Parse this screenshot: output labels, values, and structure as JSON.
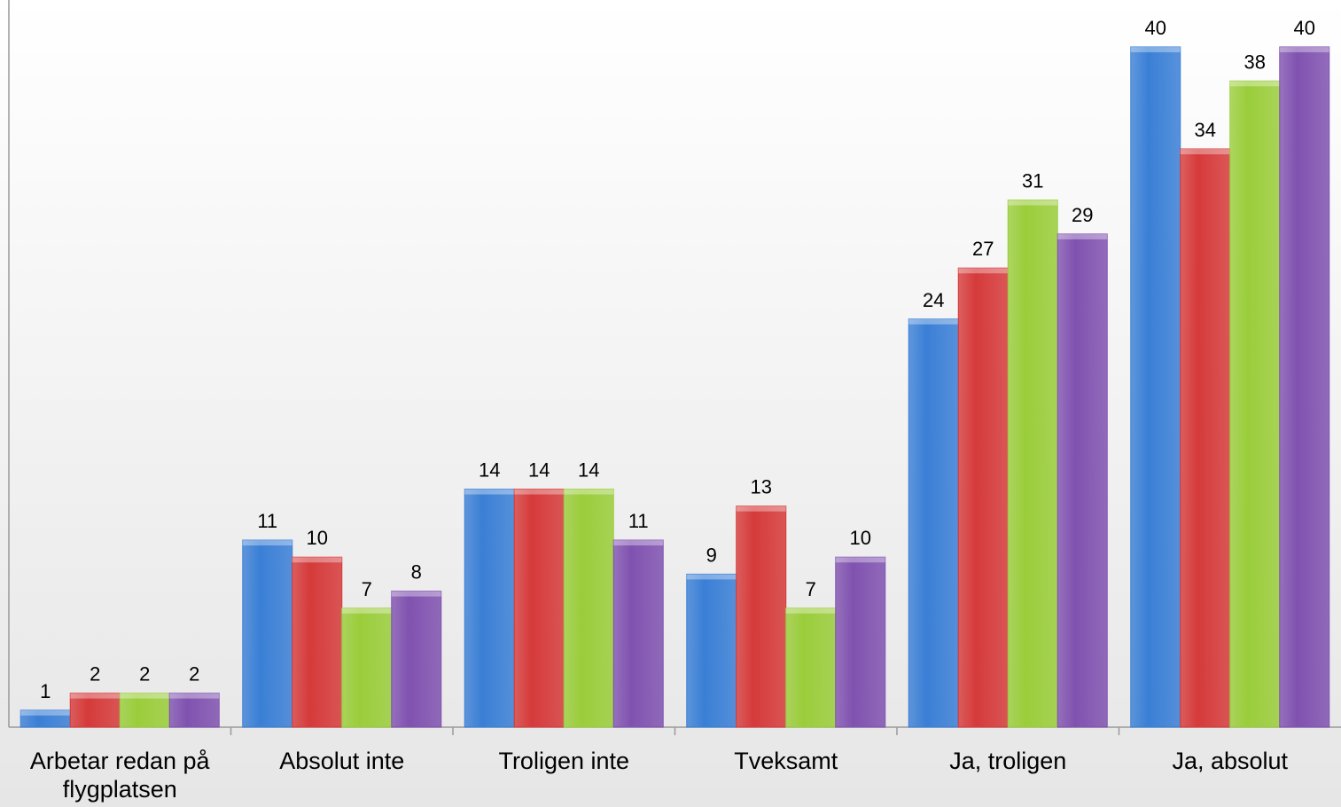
{
  "chart_data": {
    "type": "bar",
    "categories": [
      "Arbetar redan på flygplatsen",
      "Absolut inte",
      "Troligen inte",
      "Tveksamt",
      "Ja, troligen",
      "Ja, absolut"
    ],
    "series": [
      {
        "color": "#3a7fd6",
        "values": [
          1,
          11,
          14,
          9,
          24,
          40
        ]
      },
      {
        "color": "#d63a3a",
        "values": [
          2,
          10,
          14,
          13,
          27,
          34
        ]
      },
      {
        "color": "#9acd3a",
        "values": [
          2,
          7,
          14,
          7,
          31,
          38
        ]
      },
      {
        "color": "#8052b0",
        "values": [
          2,
          8,
          11,
          10,
          29,
          40
        ]
      }
    ],
    "ylim": [
      0,
      42.5
    ]
  }
}
